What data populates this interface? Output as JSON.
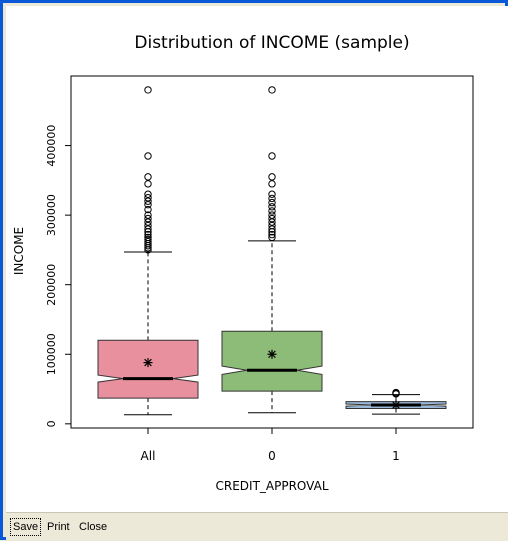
{
  "window": {
    "buttons": {
      "save": "Save",
      "print": "Print",
      "close": "Close"
    }
  },
  "chart_data": {
    "type": "boxplot",
    "title": "Distribution of INCOME (sample)",
    "xlabel": "CREDIT_APPROVAL",
    "ylabel": "INCOME",
    "ylim": [
      -6000,
      500000
    ],
    "yticks": [
      0,
      100000,
      200000,
      300000,
      400000
    ],
    "ytick_labels": [
      "0",
      "100000",
      "200000",
      "300000",
      "400000"
    ],
    "notched": true,
    "mean_marker": "asterisk",
    "groups": [
      {
        "label": "All",
        "color": "#e8909e",
        "min": 13000,
        "q1": 37000,
        "median": 65000,
        "q3": 120000,
        "max": 247000,
        "notch_low": 60000,
        "notch_high": 70000,
        "mean": 88000,
        "outliers": [
          250000,
          253000,
          256000,
          259000,
          262000,
          265000,
          268000,
          272000,
          276000,
          280000,
          285000,
          290000,
          295000,
          300000,
          308000,
          315000,
          320000,
          325000,
          330000,
          345000,
          355000,
          385000,
          480000
        ]
      },
      {
        "label": "0",
        "color": "#8cbc78",
        "min": 16000,
        "q1": 47000,
        "median": 77000,
        "q3": 133000,
        "max": 263000,
        "notch_low": 71000,
        "notch_high": 83000,
        "mean": 100000,
        "outliers": [
          268000,
          272000,
          276000,
          280000,
          285000,
          290000,
          295000,
          300000,
          306000,
          312000,
          318000,
          324000,
          330000,
          345000,
          355000,
          385000,
          480000
        ]
      },
      {
        "label": "1",
        "color": "#9ab8d8",
        "min": 14000,
        "q1": 22000,
        "median": 27000,
        "q3": 32000,
        "max": 42000,
        "notch_low": 25500,
        "notch_high": 28500,
        "mean": 27000,
        "outliers": [
          43000,
          44000,
          45000
        ]
      }
    ]
  }
}
